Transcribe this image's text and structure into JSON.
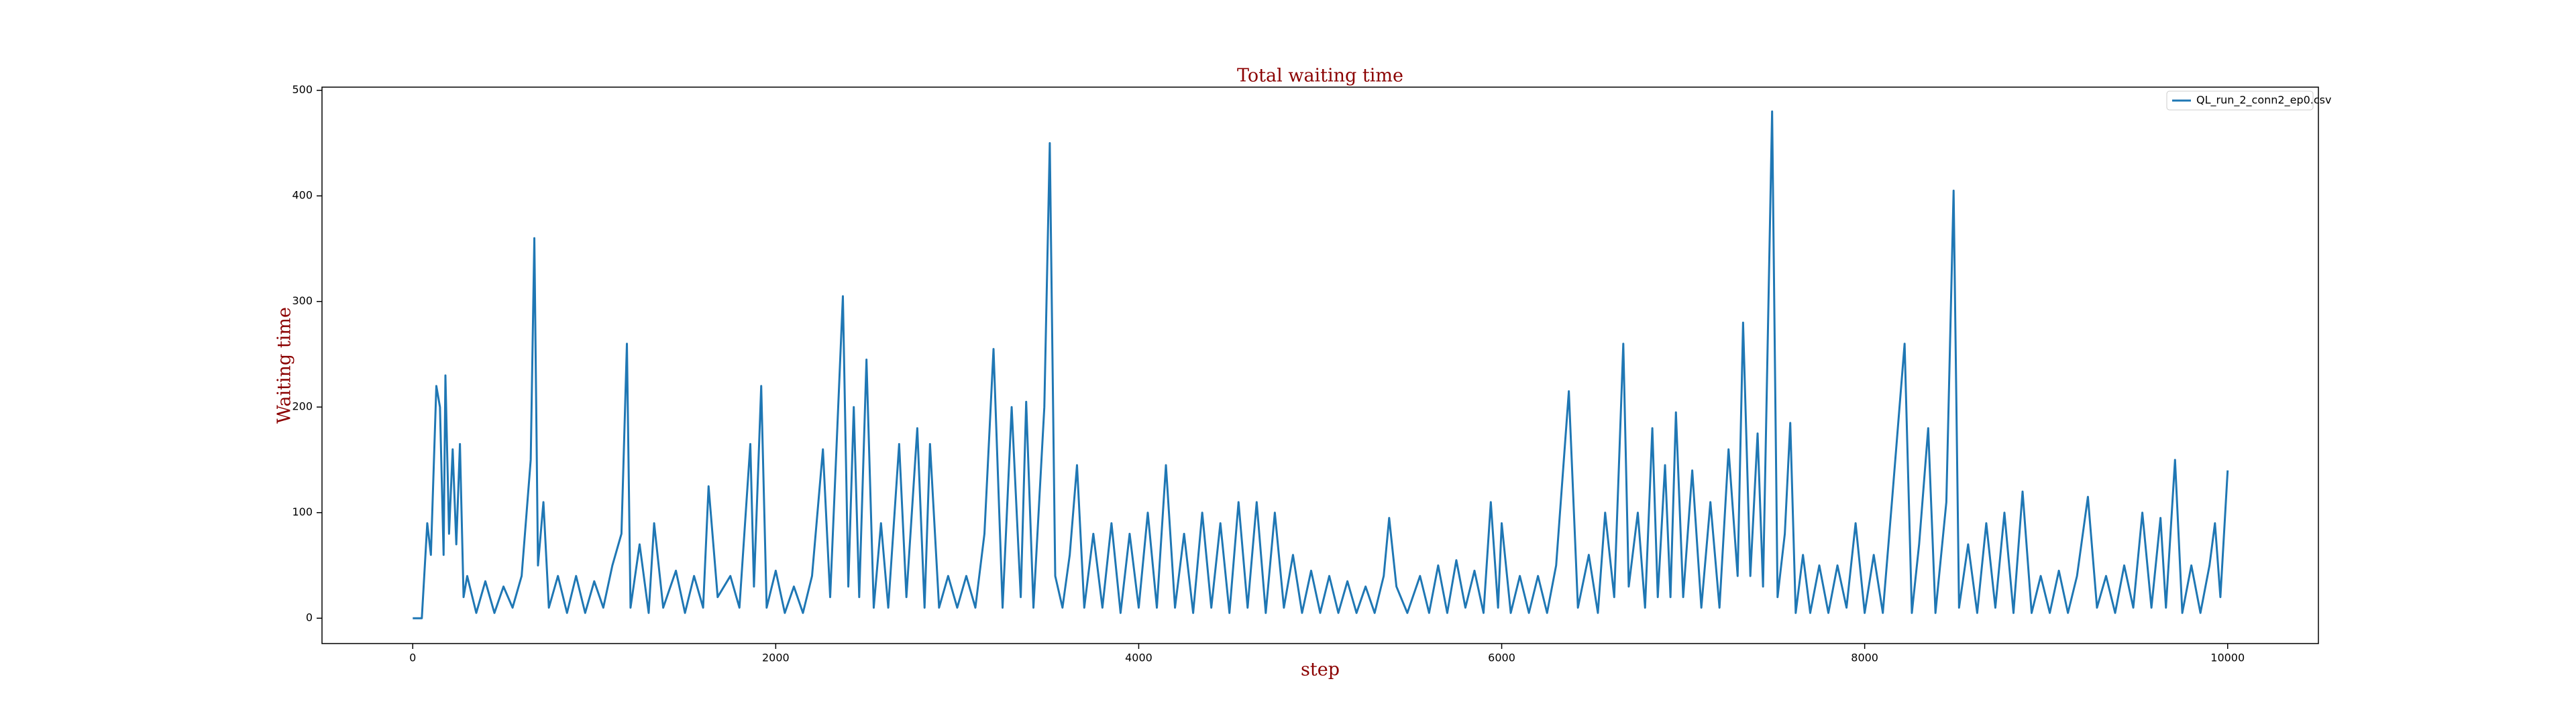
{
  "chart_data": {
    "type": "line",
    "title": "Total waiting time",
    "x_label": "step",
    "y_label": "Waiting time",
    "xlim": [
      -500,
      10500
    ],
    "ylim": [
      -24,
      503
    ],
    "xticks": [
      0,
      2000,
      4000,
      6000,
      8000,
      10000
    ],
    "yticks": [
      0,
      100,
      200,
      300,
      400,
      500
    ],
    "legend": "upper right",
    "series": [
      {
        "name": "QL_run_2_conn2_ep0.csv",
        "color": "#1f77b4",
        "x": [
          0,
          50,
          80,
          100,
          130,
          150,
          170,
          180,
          200,
          220,
          240,
          260,
          280,
          300,
          350,
          400,
          450,
          500,
          550,
          600,
          650,
          670,
          690,
          720,
          750,
          800,
          850,
          900,
          950,
          1000,
          1050,
          1100,
          1150,
          1180,
          1200,
          1250,
          1300,
          1330,
          1380,
          1450,
          1500,
          1550,
          1600,
          1630,
          1680,
          1750,
          1800,
          1860,
          1880,
          1920,
          1950,
          2000,
          2050,
          2100,
          2150,
          2200,
          2260,
          2300,
          2370,
          2400,
          2430,
          2460,
          2500,
          2540,
          2580,
          2620,
          2680,
          2720,
          2780,
          2820,
          2850,
          2900,
          2950,
          3000,
          3050,
          3100,
          3150,
          3200,
          3250,
          3300,
          3350,
          3380,
          3420,
          3480,
          3510,
          3540,
          3580,
          3620,
          3660,
          3700,
          3750,
          3800,
          3850,
          3900,
          3950,
          4000,
          4050,
          4100,
          4150,
          4200,
          4250,
          4300,
          4350,
          4400,
          4450,
          4500,
          4550,
          4600,
          4650,
          4700,
          4750,
          4800,
          4850,
          4900,
          4950,
          5000,
          5050,
          5100,
          5150,
          5200,
          5250,
          5300,
          5350,
          5380,
          5420,
          5480,
          5550,
          5600,
          5650,
          5700,
          5750,
          5800,
          5850,
          5900,
          5940,
          5980,
          6000,
          6050,
          6100,
          6150,
          6200,
          6250,
          6300,
          6370,
          6420,
          6480,
          6530,
          6570,
          6620,
          6670,
          6700,
          6750,
          6790,
          6830,
          6860,
          6900,
          6930,
          6960,
          7000,
          7050,
          7100,
          7150,
          7200,
          7250,
          7300,
          7330,
          7370,
          7410,
          7440,
          7470,
          7490,
          7520,
          7560,
          7590,
          7620,
          7660,
          7700,
          7750,
          7800,
          7850,
          7900,
          7950,
          8000,
          8050,
          8100,
          8150,
          8220,
          8260,
          8300,
          8350,
          8390,
          8450,
          8490,
          8520,
          8570,
          8620,
          8670,
          8720,
          8770,
          8820,
          8870,
          8920,
          8970,
          9020,
          9070,
          9120,
          9170,
          9230,
          9280,
          9330,
          9380,
          9430,
          9480,
          9530,
          9580,
          9630,
          9660,
          9710,
          9750,
          9800,
          9850,
          9900,
          9930,
          9960,
          10000
        ],
        "values": [
          0,
          0,
          90,
          60,
          220,
          200,
          60,
          230,
          80,
          160,
          70,
          165,
          20,
          40,
          5,
          35,
          5,
          30,
          10,
          40,
          150,
          360,
          50,
          110,
          10,
          40,
          5,
          40,
          5,
          35,
          10,
          50,
          80,
          260,
          10,
          70,
          5,
          90,
          10,
          45,
          5,
          40,
          10,
          125,
          20,
          40,
          10,
          165,
          30,
          220,
          10,
          45,
          5,
          30,
          5,
          40,
          160,
          20,
          305,
          30,
          200,
          20,
          245,
          10,
          90,
          10,
          165,
          20,
          180,
          10,
          165,
          10,
          40,
          10,
          40,
          10,
          80,
          255,
          10,
          200,
          20,
          205,
          10,
          200,
          450,
          40,
          10,
          60,
          145,
          10,
          80,
          10,
          90,
          5,
          80,
          10,
          100,
          10,
          145,
          10,
          80,
          5,
          100,
          10,
          90,
          5,
          110,
          10,
          110,
          5,
          100,
          10,
          60,
          5,
          45,
          5,
          40,
          5,
          35,
          5,
          30,
          5,
          40,
          95,
          30,
          5,
          40,
          5,
          50,
          5,
          55,
          10,
          45,
          5,
          110,
          10,
          90,
          5,
          40,
          5,
          40,
          5,
          50,
          215,
          10,
          60,
          5,
          100,
          20,
          260,
          30,
          100,
          10,
          180,
          20,
          145,
          20,
          195,
          20,
          140,
          10,
          110,
          10,
          160,
          40,
          280,
          40,
          175,
          30,
          300,
          480,
          20,
          80,
          185,
          5,
          60,
          5,
          50,
          5,
          50,
          10,
          90,
          5,
          60,
          5,
          110,
          260,
          5,
          70,
          180,
          5,
          110,
          405,
          10,
          70,
          5,
          90,
          10,
          100,
          5,
          120,
          5,
          40,
          5,
          45,
          5,
          40,
          115,
          10,
          40,
          5,
          50,
          10,
          100,
          10,
          95,
          10,
          150,
          5,
          50,
          5,
          50,
          90,
          20,
          140
        ]
      }
    ]
  }
}
